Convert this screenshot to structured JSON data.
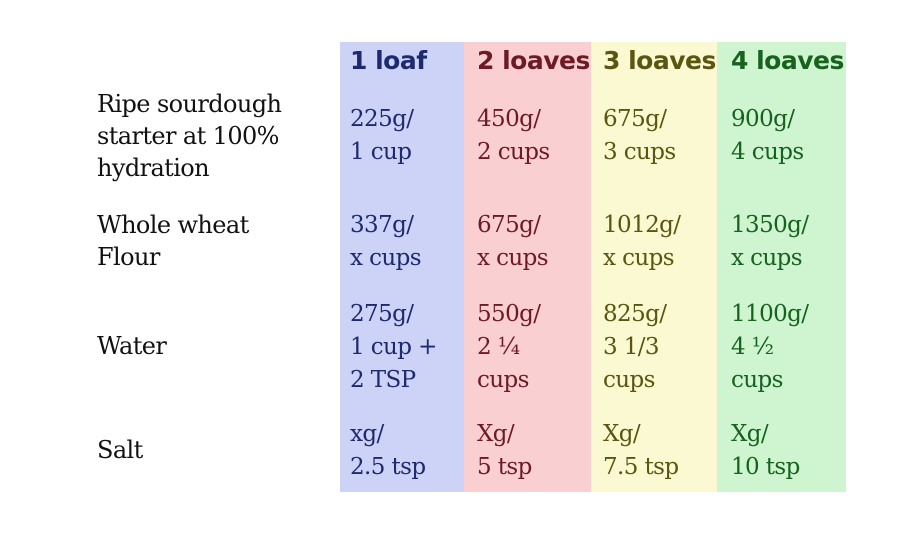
{
  "columns": [
    {
      "header": "1 loaf",
      "bg": "#ccd3f7",
      "color": "#1e2a6e"
    },
    {
      "header": "2 loaves",
      "bg": "#f9cfd2",
      "color": "#6e1a24"
    },
    {
      "header": "3 loaves",
      "bg": "#fbf9d1",
      "color": "#5a5612"
    },
    {
      "header": "4 loaves",
      "bg": "#cef5cf",
      "color": "#17621f"
    }
  ],
  "rows": [
    {
      "label": "Ripe sourdough starter at 100% hydration",
      "cells": [
        "225g/\n1 cup",
        "450g/\n2 cups",
        "675g/\n3 cups",
        "900g/\n4 cups"
      ]
    },
    {
      "label": "Whole wheat Flour",
      "cells": [
        "337g/\nx cups",
        "675g/\nx cups",
        "1012g/\nx cups",
        "1350g/\nx cups"
      ]
    },
    {
      "label": "Water",
      "cells": [
        "275g/\n1 cup +\n2 TSP",
        "550g/\n2 ¼\ncups",
        "825g/\n3 1/3\ncups",
        "1100g/\n4 ½\ncups"
      ]
    },
    {
      "label": "Salt",
      "cells": [
        "xg/\n2.5 tsp",
        "Xg/\n5 tsp",
        "Xg/\n7.5 tsp",
        "Xg/\n10 tsp"
      ]
    }
  ]
}
